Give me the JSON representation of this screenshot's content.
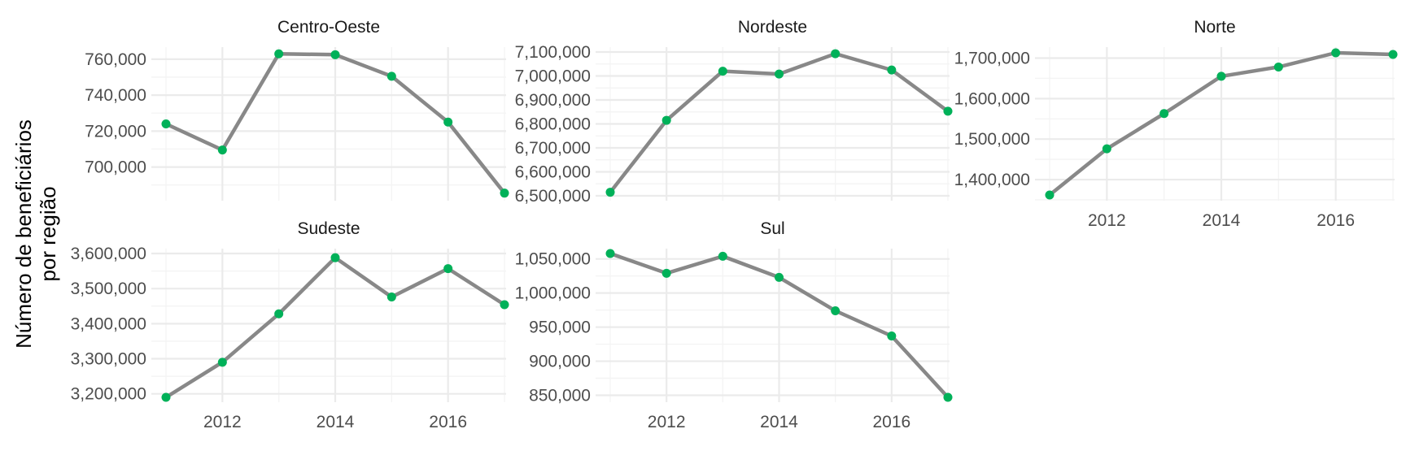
{
  "ylabel_lines": [
    "Número de beneficiários",
    "por região"
  ],
  "colors": {
    "line": "#888888",
    "point": "#00B159",
    "grid_major": "#EBEBEB",
    "grid_minor": "#F4F4F4",
    "text": "#4D4D4D"
  },
  "chart_data": [
    {
      "type": "line",
      "title": "Centro-Oeste",
      "x": [
        2011,
        2012,
        2013,
        2014,
        2015,
        2016,
        2017
      ],
      "values": [
        724000,
        709500,
        763000,
        762500,
        750500,
        725000,
        685500
      ],
      "yticks": [
        700000,
        720000,
        740000,
        760000
      ],
      "ytick_labels": [
        "700,000",
        "720,000",
        "740,000",
        "760,000"
      ],
      "xticks": [
        2012,
        2014,
        2016
      ],
      "xtick_labels": [],
      "ylim": [
        684000,
        764000
      ]
    },
    {
      "type": "line",
      "title": "Nordeste",
      "x": [
        2011,
        2012,
        2013,
        2014,
        2015,
        2016,
        2017
      ],
      "values": [
        6515000,
        6815000,
        7020000,
        7008000,
        7093000,
        7025000,
        6853000
      ],
      "yticks": [
        6500000,
        6600000,
        6700000,
        6800000,
        6900000,
        7000000,
        7100000
      ],
      "ytick_labels": [
        "6,500,000",
        "6,600,000",
        "6,700,000",
        "6,800,000",
        "6,900,000",
        "7,000,000",
        "7,100,000"
      ],
      "xticks": [
        2012,
        2014,
        2016
      ],
      "xtick_labels": [],
      "ylim": [
        6500000,
        7100000
      ]
    },
    {
      "type": "line",
      "title": "Norte",
      "x": [
        2011,
        2012,
        2013,
        2014,
        2015,
        2016,
        2017
      ],
      "values": [
        1362000,
        1476000,
        1563000,
        1655000,
        1678000,
        1713000,
        1709000
      ],
      "yticks": [
        1400000,
        1500000,
        1600000,
        1700000
      ],
      "ytick_labels": [
        "1,400,000",
        "1,500,000",
        "1,600,000",
        "1,700,000"
      ],
      "xticks": [
        2012,
        2014,
        2016
      ],
      "xtick_labels": [
        "2012",
        "2014",
        "2016"
      ],
      "ylim": [
        1360000,
        1715000
      ]
    },
    {
      "type": "line",
      "title": "Sudeste",
      "x": [
        2011,
        2012,
        2013,
        2014,
        2015,
        2016,
        2017
      ],
      "values": [
        3190000,
        3290000,
        3428000,
        3588000,
        3476000,
        3557000,
        3454000
      ],
      "yticks": [
        3200000,
        3300000,
        3400000,
        3500000,
        3600000
      ],
      "ytick_labels": [
        "3,200,000",
        "3,300,000",
        "3,400,000",
        "3,500,000",
        "3,600,000"
      ],
      "xticks": [
        2012,
        2014,
        2016
      ],
      "xtick_labels": [
        "2012",
        "2014",
        "2016"
      ],
      "ylim": [
        3190000,
        3600000
      ]
    },
    {
      "type": "line",
      "title": "Sul",
      "x": [
        2011,
        2012,
        2013,
        2014,
        2015,
        2016,
        2017
      ],
      "values": [
        1058000,
        1029000,
        1054000,
        1023000,
        974000,
        937000,
        847000
      ],
      "yticks": [
        850000,
        900000,
        950000,
        1000000,
        1050000
      ],
      "ytick_labels": [
        "850,000",
        "900,000",
        "950,000",
        "1,000,000",
        "1,050,000"
      ],
      "xticks": [
        2012,
        2014,
        2016
      ],
      "xtick_labels": [
        "2012",
        "2014",
        "2016"
      ],
      "ylim": [
        847000,
        1058000
      ]
    }
  ]
}
